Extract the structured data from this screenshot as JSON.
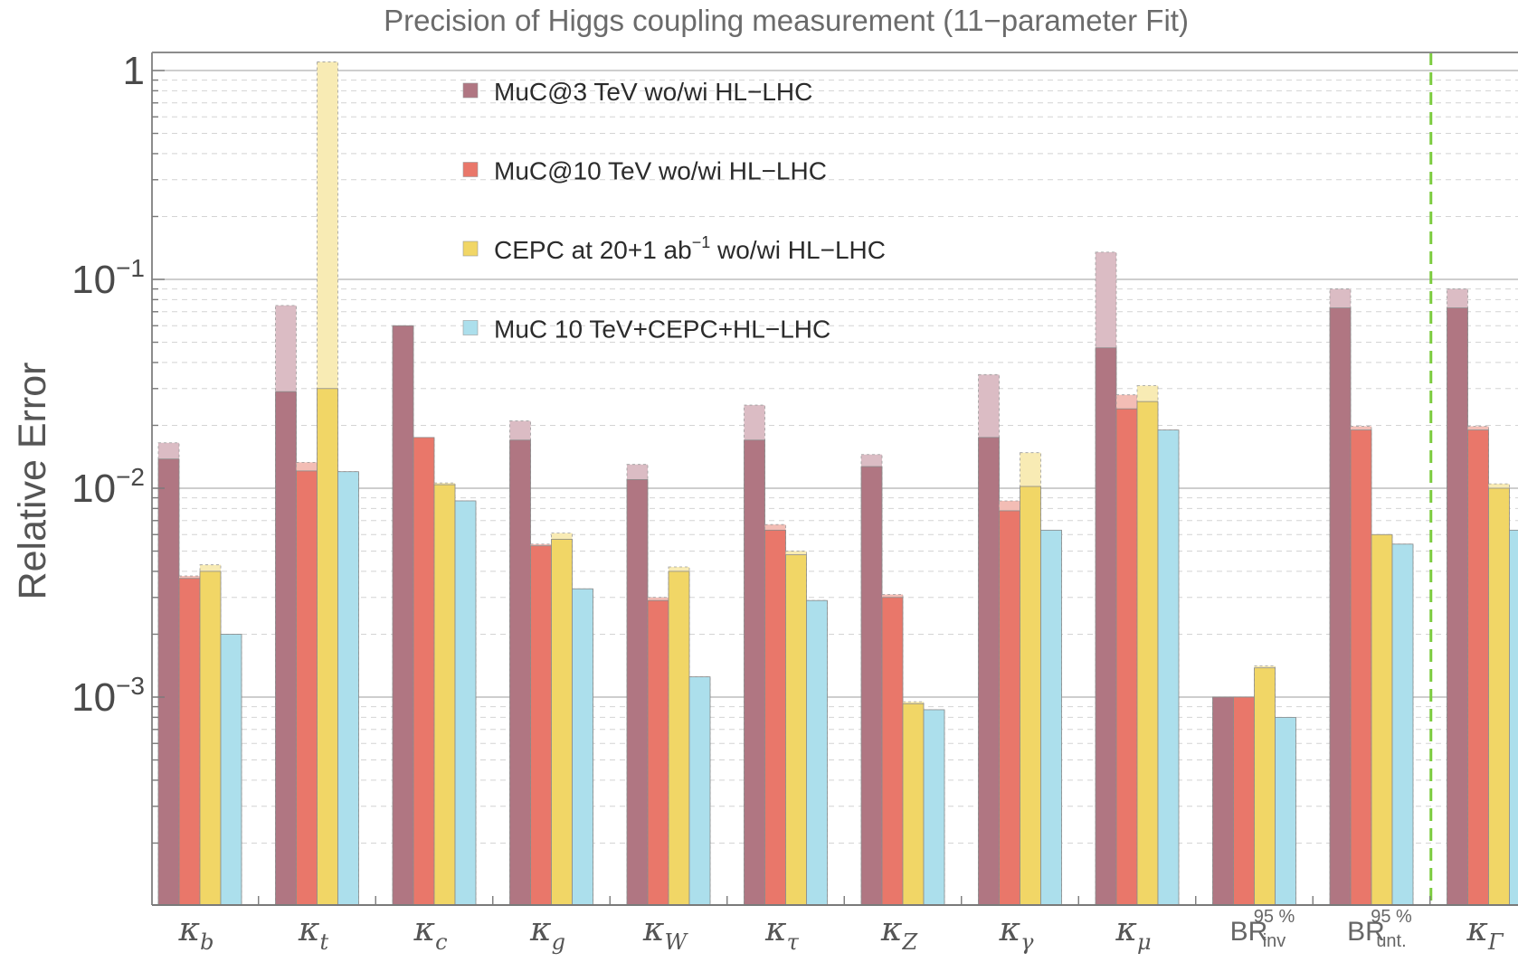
{
  "chart_data": {
    "type": "bar",
    "title": "Precision of Higgs coupling measurement (11−parameter Fit)",
    "ylabel": "Relative Error",
    "xlabel": "",
    "yscale": "log",
    "ylim": [
      0.0001,
      1.1
    ],
    "yticks": [
      {
        "base": "1",
        "exp": ""
      },
      {
        "base": "10",
        "exp": "−1"
      },
      {
        "base": "10",
        "exp": "−2"
      },
      {
        "base": "10",
        "exp": "−3"
      }
    ],
    "categories": [
      {
        "main": "κ",
        "sub": "b"
      },
      {
        "main": "κ",
        "sub": "t"
      },
      {
        "main": "κ",
        "sub": "c"
      },
      {
        "main": "κ",
        "sub": "g"
      },
      {
        "main": "κ",
        "sub": "W"
      },
      {
        "main": "κ",
        "sub": "τ"
      },
      {
        "main": "κ",
        "sub": "Z"
      },
      {
        "main": "κ",
        "sub": "γ"
      },
      {
        "main": "κ",
        "sub": "μ"
      },
      {
        "main": "BR",
        "sub": "inv",
        "sup": "95 %"
      },
      {
        "main": "BR",
        "sub": "unt.",
        "sup": "95 %"
      },
      {
        "main": "κ",
        "sub": "Γ"
      }
    ],
    "series": [
      {
        "name": "MuC@3 TeV  wo/wi HL−LHC",
        "color": "#b07682",
        "light_color": "#dbbcc4",
        "wo": [
          0.0165,
          0.075,
          0.06,
          0.021,
          0.013,
          0.025,
          0.0145,
          0.035,
          0.135,
          0.001,
          0.09,
          0.09
        ],
        "wi": [
          0.0138,
          0.029,
          0.06,
          0.017,
          0.011,
          0.017,
          0.0127,
          0.0175,
          0.047,
          0.001,
          0.073,
          0.073
        ]
      },
      {
        "name": "MuC@10 TeV  wo/wi HL−LHC",
        "color": "#e9776a",
        "light_color": "#f3bdb5",
        "wo": [
          0.0038,
          0.0133,
          0.0175,
          0.0054,
          0.003,
          0.0067,
          0.0031,
          0.0087,
          0.028,
          0.001,
          0.0198,
          0.0198
        ],
        "wi": [
          0.0037,
          0.0121,
          0.0175,
          0.0053,
          0.0029,
          0.0063,
          0.003,
          0.0078,
          0.024,
          0.001,
          0.019,
          0.019
        ]
      },
      {
        "name": "CEPC at 20+1 ab⁻¹ wo/wi HL−LHC",
        "color": "#f1d666",
        "light_color": "#f8ebb4",
        "wo": [
          0.0043,
          1.1,
          0.0106,
          0.0061,
          0.0042,
          0.005,
          0.00095,
          0.0148,
          0.031,
          0.00141,
          0.006,
          0.0105
        ],
        "wi": [
          0.004,
          0.03,
          0.0104,
          0.0057,
          0.004,
          0.0048,
          0.00093,
          0.0102,
          0.026,
          0.00138,
          0.006,
          0.01
        ]
      },
      {
        "name": "MuC 10 TeV+CEPC+HL−LHC",
        "color": "#acdfec",
        "light_color": "#acdfec",
        "wo": [
          0.002,
          0.012,
          0.0087,
          0.0033,
          0.00125,
          0.0029,
          0.00087,
          0.0063,
          0.019,
          0.0008,
          0.0054,
          0.0063
        ],
        "wi": [
          0.002,
          0.012,
          0.0087,
          0.0033,
          0.00125,
          0.0029,
          0.00087,
          0.0063,
          0.019,
          0.0008,
          0.0054,
          0.0063
        ]
      }
    ],
    "legend": {
      "placement": "top-left-inside",
      "entries": [
        {
          "text": "MuC@3 TeV  wo/wi HL−LHC",
          "color": "#b07682"
        },
        {
          "text": "MuC@10 TeV  wo/wi HL−LHC",
          "color": "#e9776a"
        },
        {
          "text_pre": "CEPC at 20+1 ab",
          "text_sup": "−1",
          "text_post": " wo/wi HL−LHC",
          "color": "#f1d666"
        },
        {
          "text": "MuC 10 TeV+CEPC+HL−LHC",
          "color": "#acdfec"
        }
      ]
    },
    "divider_after_category": 10,
    "divider_color": "#7ccc3f",
    "grid": true
  }
}
